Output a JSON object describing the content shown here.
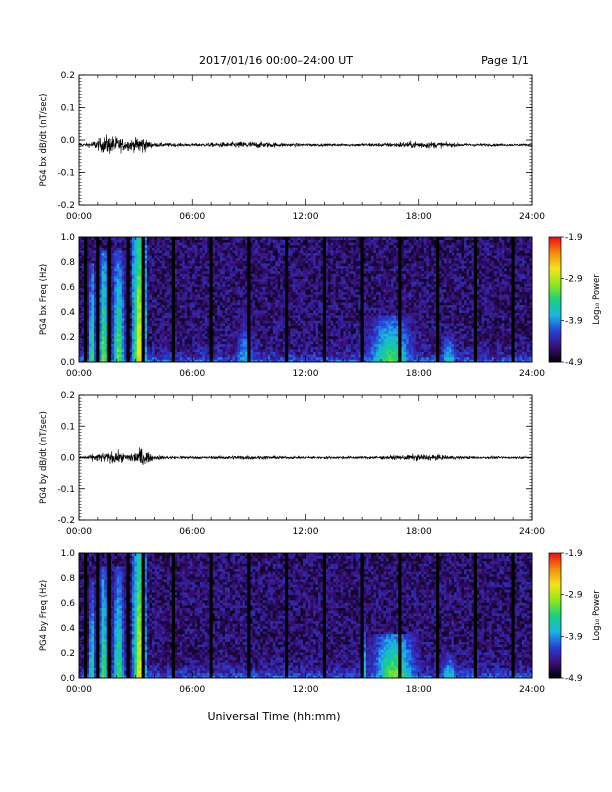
{
  "header": {
    "title": "2017/01/16  00:00–24:00 UT",
    "page": "Page 1/1"
  },
  "x_axis": {
    "label": "Universal Time (hh:mm)",
    "range": [
      0,
      24
    ],
    "ticks": [
      0,
      6,
      12,
      18,
      24
    ],
    "tick_labels": [
      "00:00",
      "06:00",
      "12:00",
      "18:00",
      "24:00"
    ]
  },
  "colorbar": {
    "label": "Log₁₀ Power",
    "range": [
      -4.9,
      -1.9
    ],
    "ticks": [
      -1.9,
      -2.9,
      -3.9,
      -4.9
    ],
    "tick_labels": [
      "-1.9",
      "-2.9",
      "-3.9",
      "-4.9"
    ],
    "colors": [
      "#000000",
      "#3a0f7a",
      "#2a3fd6",
      "#19b4e8",
      "#19d27a",
      "#8fe81c",
      "#f2e61a",
      "#f58a10",
      "#ee1010"
    ]
  },
  "chart_data": [
    {
      "type": "line",
      "ylabel": "PG4 bx dB/dt (nT/sec)",
      "xlim": [
        0,
        24
      ],
      "ylim": [
        -0.2,
        0.2
      ],
      "yticks": [
        -0.2,
        -0.1,
        0.0,
        0.1,
        0.2
      ],
      "ytick_labels": [
        "-0.2",
        "-0.1",
        "0.0",
        "0.1",
        "0.2"
      ],
      "baseline": -0.015,
      "envelope": {
        "x": [
          0,
          0.5,
          1.0,
          1.5,
          2.0,
          2.5,
          3.0,
          3.3,
          3.6,
          4.0,
          5,
          6,
          7,
          8,
          9,
          10,
          11,
          12,
          13,
          14,
          15,
          16,
          17,
          18,
          19,
          20,
          21,
          22,
          23,
          24
        ],
        "amp": [
          0.008,
          0.012,
          0.03,
          0.055,
          0.045,
          0.03,
          0.035,
          0.06,
          0.025,
          0.012,
          0.01,
          0.008,
          0.012,
          0.015,
          0.02,
          0.015,
          0.01,
          0.008,
          0.007,
          0.007,
          0.009,
          0.01,
          0.015,
          0.02,
          0.017,
          0.01,
          0.008,
          0.007,
          0.006,
          0.006
        ]
      }
    },
    {
      "type": "heatmap",
      "ylabel": "PG4 bx Freq (Hz)",
      "xlim": [
        0,
        24
      ],
      "ylim": [
        0.0,
        1.0
      ],
      "yticks": [
        0.0,
        0.2,
        0.4,
        0.6,
        0.8,
        1.0
      ],
      "ytick_labels": [
        "0.0",
        "0.2",
        "0.4",
        "0.6",
        "0.8",
        "1.0"
      ],
      "gap_hours": [
        0.35,
        1.0,
        1.6,
        2.6,
        3.4,
        5.0,
        7.0,
        9.0,
        11.0,
        13.0,
        15.0,
        17.0,
        19.0,
        21.0,
        23.0
      ],
      "bursts": [
        {
          "t": 0.7,
          "w": 0.18,
          "f": 0.8,
          "p": -3.2
        },
        {
          "t": 1.3,
          "w": 0.2,
          "f": 0.9,
          "p": -3.0
        },
        {
          "t": 2.1,
          "w": 0.3,
          "f": 0.9,
          "p": -3.1
        },
        {
          "t": 3.2,
          "w": 0.25,
          "f": 1.0,
          "p": -2.5
        },
        {
          "t": 8.8,
          "w": 0.7,
          "f": 0.45,
          "p": -3.7
        },
        {
          "t": 16.5,
          "w": 1.2,
          "f": 0.38,
          "p": -3.2
        },
        {
          "t": 19.6,
          "w": 0.5,
          "f": 0.25,
          "p": -3.5
        }
      ]
    },
    {
      "type": "line",
      "ylabel": "PG4 by dB/dt (nT/sec)",
      "xlim": [
        0,
        24
      ],
      "ylim": [
        -0.2,
        0.2
      ],
      "yticks": [
        -0.2,
        -0.1,
        0.0,
        0.1,
        0.2
      ],
      "ytick_labels": [
        "-0.2",
        "-0.1",
        "0.0",
        "0.1",
        "0.2"
      ],
      "baseline": 0.0,
      "envelope": {
        "x": [
          0,
          0.5,
          1.0,
          1.5,
          2.0,
          2.5,
          3.0,
          3.3,
          3.6,
          4.0,
          5,
          6,
          7,
          8,
          9,
          10,
          11,
          12,
          13,
          14,
          15,
          16,
          17,
          18,
          19,
          20,
          21,
          22,
          23,
          24
        ],
        "amp": [
          0.01,
          0.012,
          0.025,
          0.03,
          0.035,
          0.02,
          0.04,
          0.06,
          0.03,
          0.012,
          0.01,
          0.008,
          0.008,
          0.01,
          0.012,
          0.01,
          0.008,
          0.007,
          0.007,
          0.008,
          0.008,
          0.01,
          0.012,
          0.02,
          0.015,
          0.01,
          0.008,
          0.007,
          0.006,
          0.006
        ]
      }
    },
    {
      "type": "heatmap",
      "ylabel": "PG4 by Freq (Hz)",
      "xlim": [
        0,
        24
      ],
      "ylim": [
        0.0,
        1.0
      ],
      "yticks": [
        0.0,
        0.2,
        0.4,
        0.6,
        0.8,
        1.0
      ],
      "ytick_labels": [
        "0.0",
        "0.2",
        "0.4",
        "0.6",
        "0.8",
        "1.0"
      ],
      "gap_hours": [
        0.35,
        1.0,
        1.6,
        2.6,
        3.4,
        5.0,
        7.0,
        9.0,
        11.0,
        13.0,
        15.0,
        17.0,
        19.0,
        21.0,
        23.0
      ],
      "bursts": [
        {
          "t": 0.7,
          "w": 0.18,
          "f": 0.8,
          "p": -3.3
        },
        {
          "t": 1.3,
          "w": 0.2,
          "f": 0.9,
          "p": -3.1
        },
        {
          "t": 2.1,
          "w": 0.3,
          "f": 0.9,
          "p": -3.2
        },
        {
          "t": 3.2,
          "w": 0.25,
          "f": 1.0,
          "p": -2.6
        },
        {
          "t": 15.1,
          "w": 0.15,
          "f": 0.52,
          "p": -3.5
        },
        {
          "t": 16.7,
          "w": 1.0,
          "f": 0.35,
          "p": -3.0
        },
        {
          "t": 19.6,
          "w": 0.5,
          "f": 0.22,
          "p": -3.5
        }
      ]
    }
  ]
}
